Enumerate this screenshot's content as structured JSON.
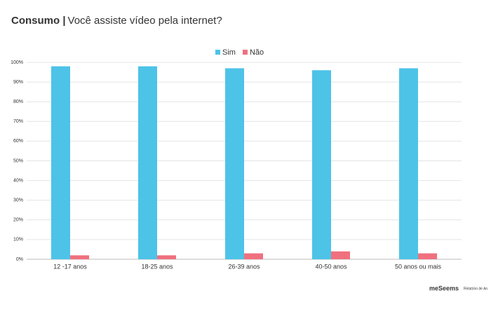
{
  "chart_data": {
    "type": "bar",
    "title_prefix": "Consumo |",
    "title": "Você assiste vídeo pela internet?",
    "categories": [
      "12 -17 anos",
      "18-25 anos",
      "26-39 anos",
      "40-50 anos",
      "50 anos ou mais"
    ],
    "series": [
      {
        "name": "Sim",
        "color": "#4dc3e8",
        "values": [
          98,
          98,
          97,
          96,
          97
        ]
      },
      {
        "name": "Não",
        "color": "#f0707e",
        "values": [
          2,
          2,
          3,
          4,
          3
        ]
      }
    ],
    "ylim": [
      0,
      100
    ],
    "yticks": [
      {
        "value": 0,
        "label": "0%"
      },
      {
        "value": 10,
        "label": "10%"
      },
      {
        "value": 20,
        "label": "20%"
      },
      {
        "value": 30,
        "label": "30%"
      },
      {
        "value": 40,
        "label": "40%"
      },
      {
        "value": 50,
        "label": "50%"
      },
      {
        "value": 60,
        "label": "60%"
      },
      {
        "value": 70,
        "label": "70%"
      },
      {
        "value": 80,
        "label": "80%"
      },
      {
        "value": 90,
        "label": "90%"
      },
      {
        "value": 100,
        "label": "100%"
      }
    ],
    "grid": true,
    "legend": "top"
  },
  "footer": {
    "logo": "meSeems",
    "text": "Relatório de An"
  }
}
